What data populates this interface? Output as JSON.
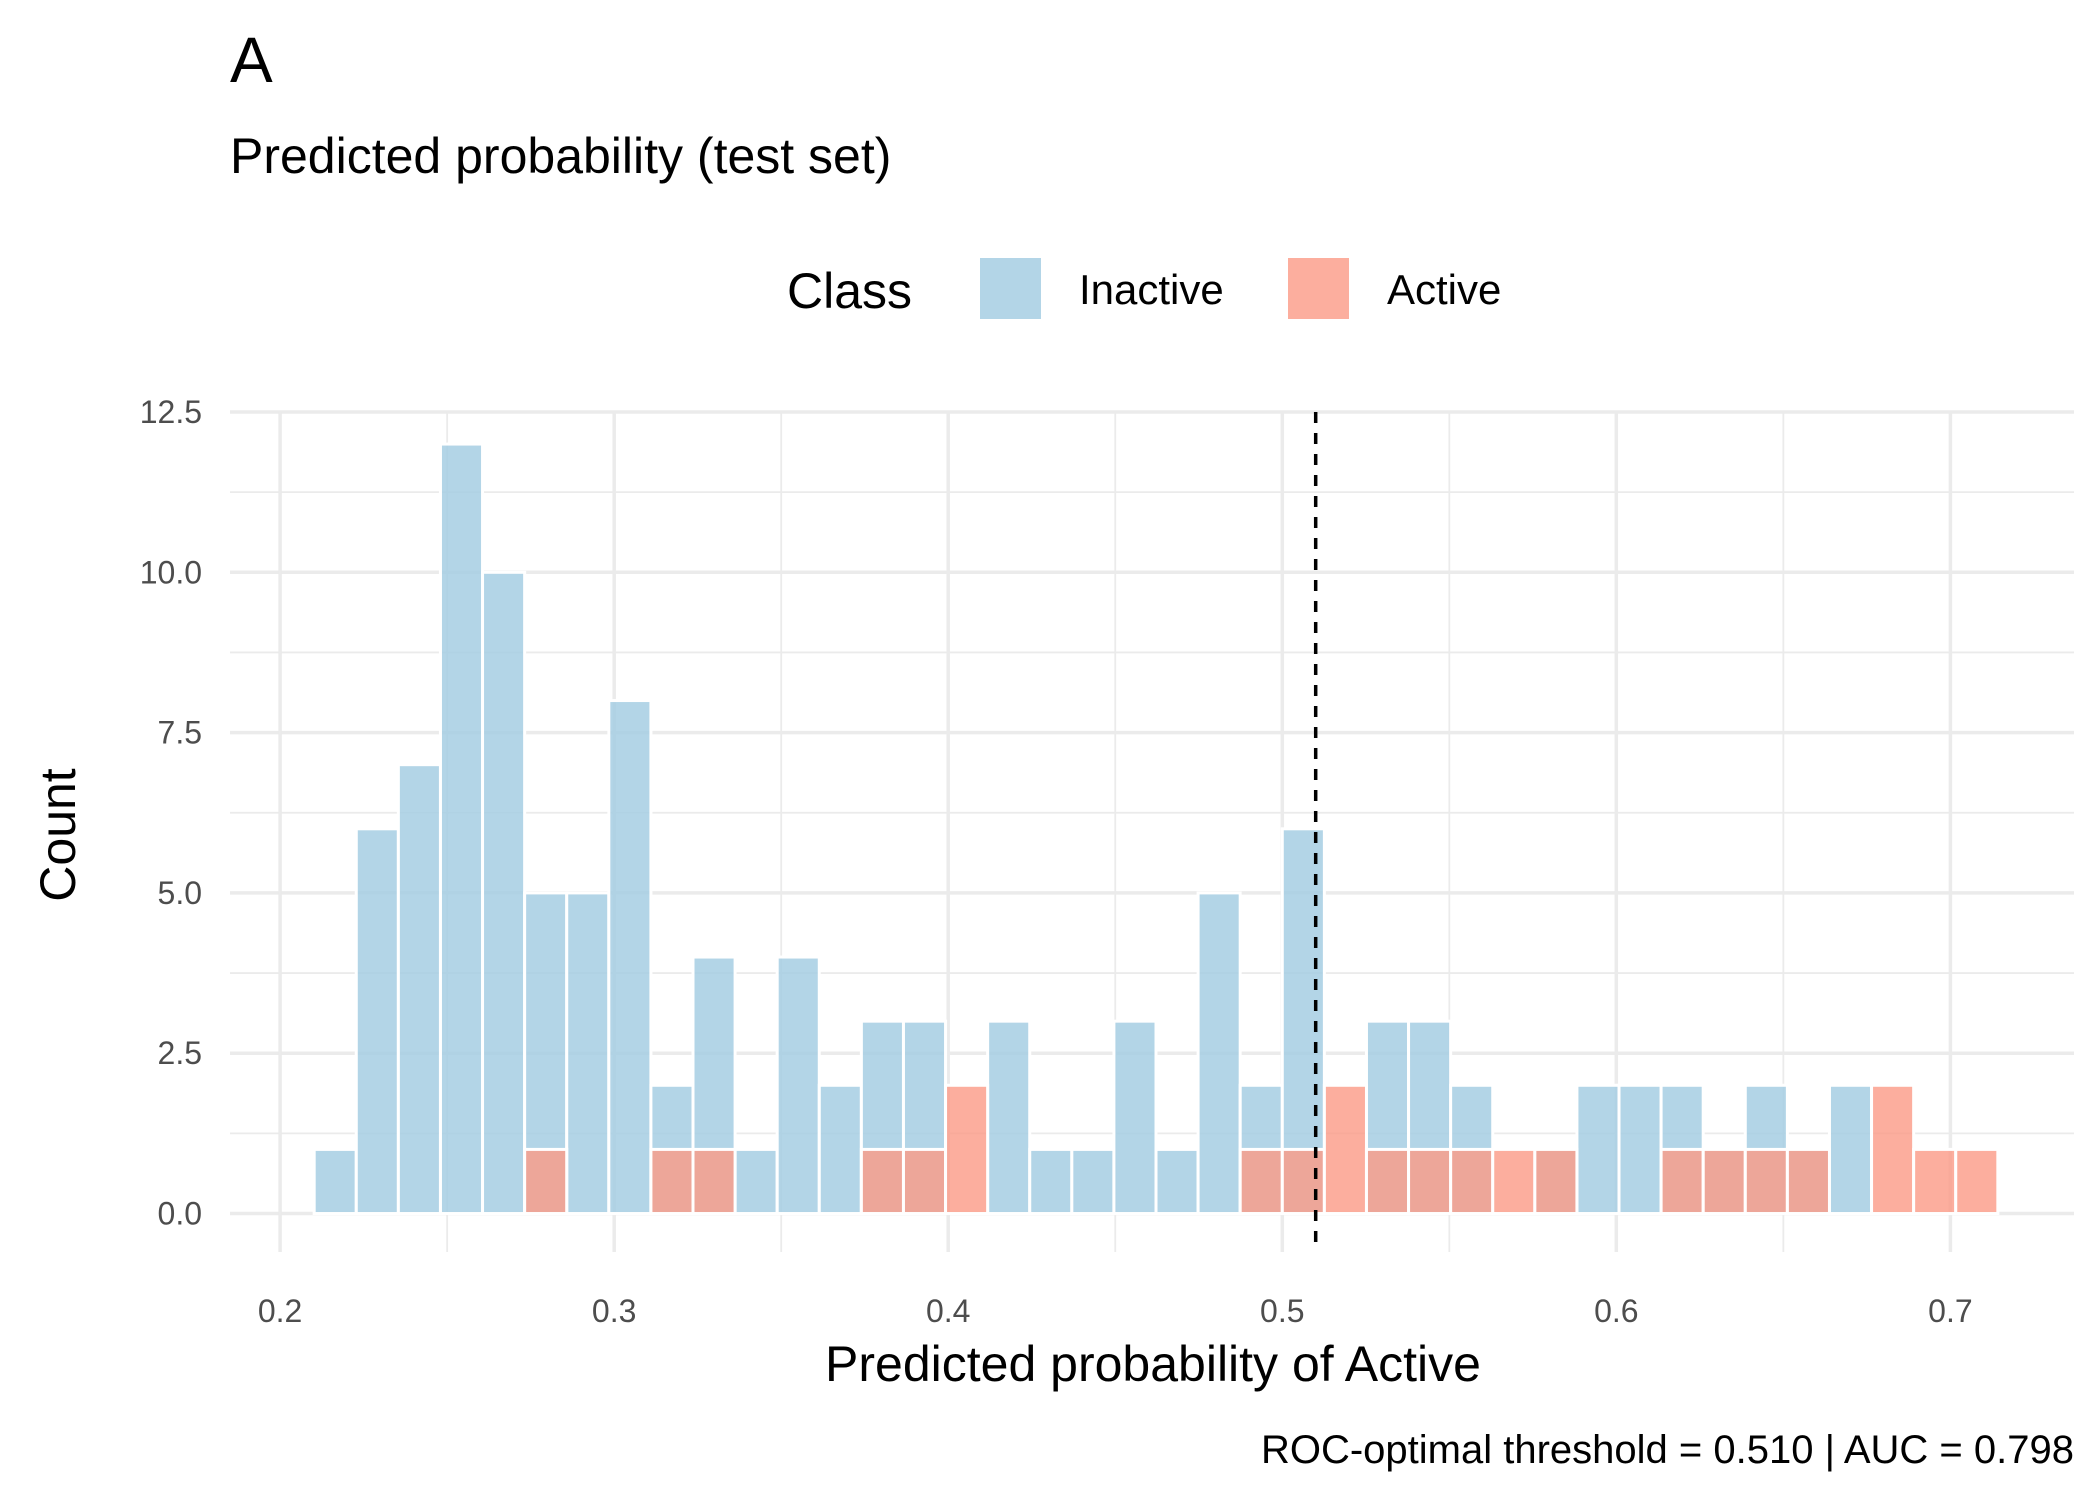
{
  "panel_label": "A",
  "chart_data": {
    "type": "bar",
    "title": "Predicted probability (test set)",
    "xlabel": "Predicted probability of Active",
    "ylabel": "Count",
    "caption": "ROC-optimal threshold = 0.510 | AUC = 0.798",
    "legend": {
      "title": "Class",
      "position": "top",
      "entries": [
        {
          "label": "Inactive",
          "color": "#a6cee3"
        },
        {
          "label": "Active",
          "color": "#fb9a86"
        }
      ]
    },
    "xlim": [
      0.185,
      0.737
    ],
    "ylim": [
      -0.6,
      12.5
    ],
    "x_ticks": [
      0.2,
      0.3,
      0.4,
      0.5,
      0.6,
      0.7
    ],
    "x_tick_labels": [
      "0.2",
      "0.3",
      "0.4",
      "0.5",
      "0.6",
      "0.7"
    ],
    "y_ticks": [
      0,
      2.5,
      5,
      7.5,
      10,
      12.5
    ],
    "y_tick_labels": [
      "0.0",
      "2.5",
      "5.0",
      "7.5",
      "10.0",
      "12.5"
    ],
    "grid": true,
    "threshold": 0.51,
    "bin_width": 0.0126,
    "bin_centers": [
      0.2165,
      0.2291,
      0.2417,
      0.2543,
      0.2669,
      0.2795,
      0.2921,
      0.3047,
      0.3173,
      0.3299,
      0.3425,
      0.3551,
      0.3677,
      0.3803,
      0.3929,
      0.4055,
      0.4181,
      0.4307,
      0.4433,
      0.4559,
      0.4685,
      0.4811,
      0.4937,
      0.5063,
      0.5189,
      0.5315,
      0.5441,
      0.5567,
      0.5693,
      0.5819,
      0.5945,
      0.6071,
      0.6197,
      0.6323,
      0.6449,
      0.6575,
      0.6701,
      0.6827,
      0.6953,
      0.7079
    ],
    "series": [
      {
        "name": "Inactive",
        "color": "#a6cee3",
        "values": [
          1,
          6,
          7,
          12,
          10,
          5,
          5,
          8,
          2,
          4,
          1,
          4,
          2,
          3,
          3,
          0,
          3,
          1,
          1,
          3,
          1,
          5,
          2,
          6,
          0,
          3,
          3,
          2,
          0,
          1,
          2,
          2,
          2,
          1,
          2,
          1,
          2,
          0,
          0,
          0
        ]
      },
      {
        "name": "Active",
        "color": "#fb9a86",
        "values": [
          0,
          0,
          0,
          0,
          0,
          1,
          0,
          0,
          1,
          1,
          0,
          0,
          0,
          1,
          1,
          2,
          0,
          0,
          0,
          0,
          0,
          0,
          1,
          1,
          2,
          1,
          1,
          1,
          1,
          1,
          0,
          0,
          1,
          1,
          1,
          1,
          0,
          2,
          1,
          1
        ]
      }
    ]
  }
}
